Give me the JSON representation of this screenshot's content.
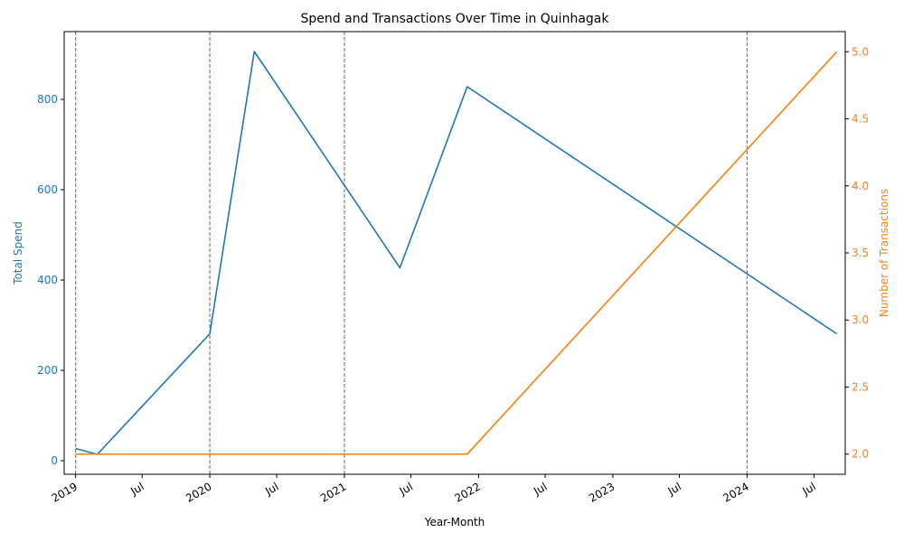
{
  "chart_data": {
    "type": "line",
    "title": "Spend and Transactions Over Time in Quinhagak",
    "xlabel": "Year-Month",
    "x_range": [
      "2018-12-01",
      "2024-09-24"
    ],
    "x_ticks": [
      {
        "date": "2019-01-01",
        "label": "2019"
      },
      {
        "date": "2019-07-01",
        "label": "Jul"
      },
      {
        "date": "2020-01-01",
        "label": "2020"
      },
      {
        "date": "2020-07-01",
        "label": "Jul"
      },
      {
        "date": "2021-01-01",
        "label": "2021"
      },
      {
        "date": "2021-07-01",
        "label": "Jul"
      },
      {
        "date": "2022-01-01",
        "label": "2022"
      },
      {
        "date": "2022-07-01",
        "label": "Jul"
      },
      {
        "date": "2023-01-01",
        "label": "2023"
      },
      {
        "date": "2023-07-01",
        "label": "Jul"
      },
      {
        "date": "2024-01-01",
        "label": "2024"
      },
      {
        "date": "2024-07-01",
        "label": "Jul"
      }
    ],
    "year_divider_dates": [
      "2019-01-01",
      "2020-01-01",
      "2021-01-01",
      "2024-01-01"
    ],
    "left_axis": {
      "label": "Total Spend",
      "color": "#1f77b4",
      "ylim": [
        -30,
        950
      ],
      "ticks": [
        0,
        200,
        400,
        600,
        800
      ]
    },
    "right_axis": {
      "label": "Number of Transactions",
      "color": "#ff7f0e",
      "ylim": [
        1.85,
        5.15
      ],
      "ticks": [
        2.0,
        2.5,
        3.0,
        3.5,
        4.0,
        4.5,
        5.0
      ],
      "tick_labels": [
        "2.0",
        "2.5",
        "3.0",
        "3.5",
        "4.0",
        "4.5",
        "5.0"
      ]
    },
    "series": [
      {
        "axis": "left",
        "color": "#1f77b4",
        "x": [
          "2019-01-01",
          "2019-03-01",
          "2020-01-01",
          "2020-05-01",
          "2021-06-01",
          "2021-12-01",
          "2024-09-01"
        ],
        "y": [
          27,
          14,
          281,
          906,
          427,
          828,
          281
        ]
      },
      {
        "axis": "right",
        "color": "#ff7f0e",
        "x": [
          "2019-01-01",
          "2021-12-01",
          "2024-09-01"
        ],
        "y": [
          2,
          2,
          5
        ]
      }
    ]
  }
}
